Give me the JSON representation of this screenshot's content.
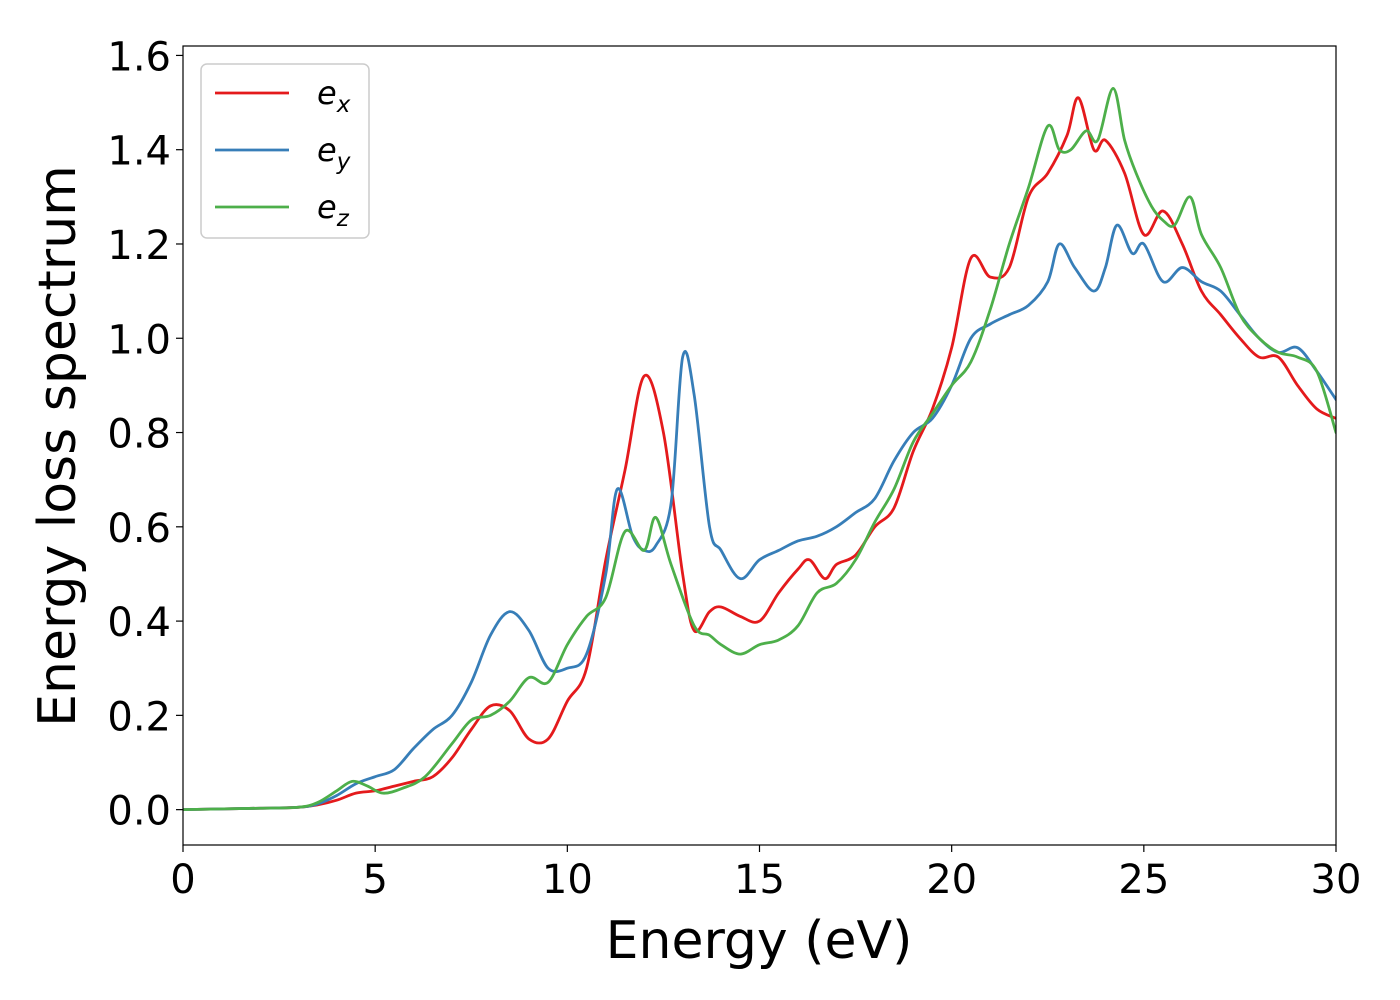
{
  "chart_data": {
    "type": "line",
    "xlabel": "Energy (eV)",
    "ylabel": "Energy loss spectrum",
    "xlim": [
      0,
      30
    ],
    "ylim": [
      -0.075,
      1.62
    ],
    "xticks": [
      0,
      5,
      10,
      15,
      20,
      25,
      30
    ],
    "xtick_labels": [
      "0",
      "5",
      "10",
      "15",
      "20",
      "25",
      "30"
    ],
    "yticks": [
      0.0,
      0.2,
      0.4,
      0.6,
      0.8,
      1.0,
      1.2,
      1.4,
      1.6
    ],
    "ytick_labels": [
      "0.0",
      "0.2",
      "0.4",
      "0.6",
      "0.8",
      "1.0",
      "1.2",
      "1.4",
      "1.6"
    ],
    "grid": false,
    "legend_position": "top-left",
    "series": [
      {
        "name": "e_x",
        "legend_base": "e",
        "legend_sub": "x",
        "color": "#e41a1c",
        "x": [
          0,
          2,
          3,
          3.5,
          4,
          4.5,
          5,
          5.5,
          6,
          6.5,
          7,
          7.5,
          8,
          8.5,
          9,
          9.5,
          10,
          10.5,
          11,
          11.5,
          12,
          12.5,
          13,
          13.3,
          13.7,
          14,
          14.5,
          15,
          15.5,
          16,
          16.3,
          16.7,
          17,
          17.5,
          18,
          18.5,
          19,
          19.5,
          20,
          20.5,
          21,
          21.5,
          22,
          22.5,
          23,
          23.3,
          23.7,
          24,
          24.5,
          25,
          25.5,
          26,
          26.5,
          27,
          27.5,
          28,
          28.5,
          29,
          29.5,
          30
        ],
        "y": [
          0.0,
          0.003,
          0.005,
          0.01,
          0.02,
          0.035,
          0.04,
          0.05,
          0.06,
          0.07,
          0.11,
          0.17,
          0.22,
          0.21,
          0.15,
          0.15,
          0.23,
          0.3,
          0.53,
          0.72,
          0.92,
          0.8,
          0.5,
          0.38,
          0.42,
          0.43,
          0.41,
          0.4,
          0.46,
          0.51,
          0.53,
          0.49,
          0.52,
          0.54,
          0.6,
          0.64,
          0.76,
          0.85,
          0.98,
          1.17,
          1.13,
          1.15,
          1.3,
          1.35,
          1.43,
          1.51,
          1.4,
          1.42,
          1.35,
          1.22,
          1.27,
          1.2,
          1.1,
          1.05,
          1.0,
          0.96,
          0.96,
          0.9,
          0.85,
          0.83
        ]
      },
      {
        "name": "e_y",
        "legend_base": "e",
        "legend_sub": "y",
        "color": "#377eb8",
        "x": [
          0,
          2,
          3,
          3.5,
          4,
          4.5,
          5,
          5.5,
          6,
          6.5,
          7,
          7.5,
          8,
          8.5,
          9,
          9.5,
          10,
          10.5,
          11,
          11.3,
          11.7,
          12,
          12.3,
          12.7,
          13,
          13.3,
          13.7,
          14,
          14.5,
          15,
          15.5,
          16,
          16.5,
          17,
          17.5,
          18,
          18.5,
          19,
          19.5,
          20,
          20.5,
          21,
          21.5,
          22,
          22.5,
          22.8,
          23.2,
          23.7,
          24,
          24.3,
          24.7,
          25,
          25.5,
          26,
          26.5,
          27,
          27.5,
          28,
          28.5,
          29,
          29.5,
          30
        ],
        "y": [
          0.0,
          0.003,
          0.005,
          0.012,
          0.03,
          0.055,
          0.07,
          0.085,
          0.13,
          0.17,
          0.2,
          0.27,
          0.37,
          0.42,
          0.38,
          0.3,
          0.3,
          0.33,
          0.5,
          0.68,
          0.58,
          0.55,
          0.56,
          0.65,
          0.96,
          0.88,
          0.6,
          0.55,
          0.49,
          0.53,
          0.55,
          0.57,
          0.58,
          0.6,
          0.63,
          0.66,
          0.74,
          0.8,
          0.83,
          0.9,
          1.0,
          1.03,
          1.05,
          1.07,
          1.12,
          1.2,
          1.15,
          1.1,
          1.15,
          1.24,
          1.18,
          1.2,
          1.12,
          1.15,
          1.12,
          1.1,
          1.05,
          1.0,
          0.97,
          0.98,
          0.93,
          0.87
        ]
      },
      {
        "name": "e_z",
        "legend_base": "e",
        "legend_sub": "z",
        "color": "#4daf4a",
        "x": [
          0,
          2,
          3,
          3.5,
          4,
          4.4,
          4.8,
          5.2,
          5.7,
          6.3,
          7,
          7.5,
          8,
          8.5,
          9,
          9.5,
          10,
          10.5,
          11,
          11.5,
          12,
          12.3,
          12.7,
          13.3,
          13.7,
          14,
          14.5,
          15,
          15.5,
          16,
          16.5,
          17,
          17.5,
          18,
          18.5,
          19,
          19.5,
          20,
          20.5,
          21,
          21.5,
          22,
          22.5,
          22.8,
          23.1,
          23.5,
          23.8,
          24.2,
          24.5,
          24.8,
          25.2,
          25.5,
          25.8,
          26.2,
          26.5,
          27,
          27.5,
          28,
          28.5,
          29,
          29.5,
          30
        ],
        "y": [
          0.0,
          0.003,
          0.005,
          0.015,
          0.04,
          0.06,
          0.05,
          0.035,
          0.045,
          0.07,
          0.14,
          0.19,
          0.2,
          0.23,
          0.28,
          0.27,
          0.35,
          0.41,
          0.45,
          0.59,
          0.55,
          0.62,
          0.52,
          0.39,
          0.37,
          0.35,
          0.33,
          0.35,
          0.36,
          0.39,
          0.46,
          0.48,
          0.53,
          0.61,
          0.68,
          0.78,
          0.84,
          0.9,
          0.95,
          1.06,
          1.2,
          1.32,
          1.45,
          1.4,
          1.4,
          1.44,
          1.42,
          1.53,
          1.42,
          1.35,
          1.28,
          1.25,
          1.24,
          1.3,
          1.22,
          1.15,
          1.05,
          1.0,
          0.97,
          0.96,
          0.93,
          0.8
        ]
      }
    ]
  }
}
